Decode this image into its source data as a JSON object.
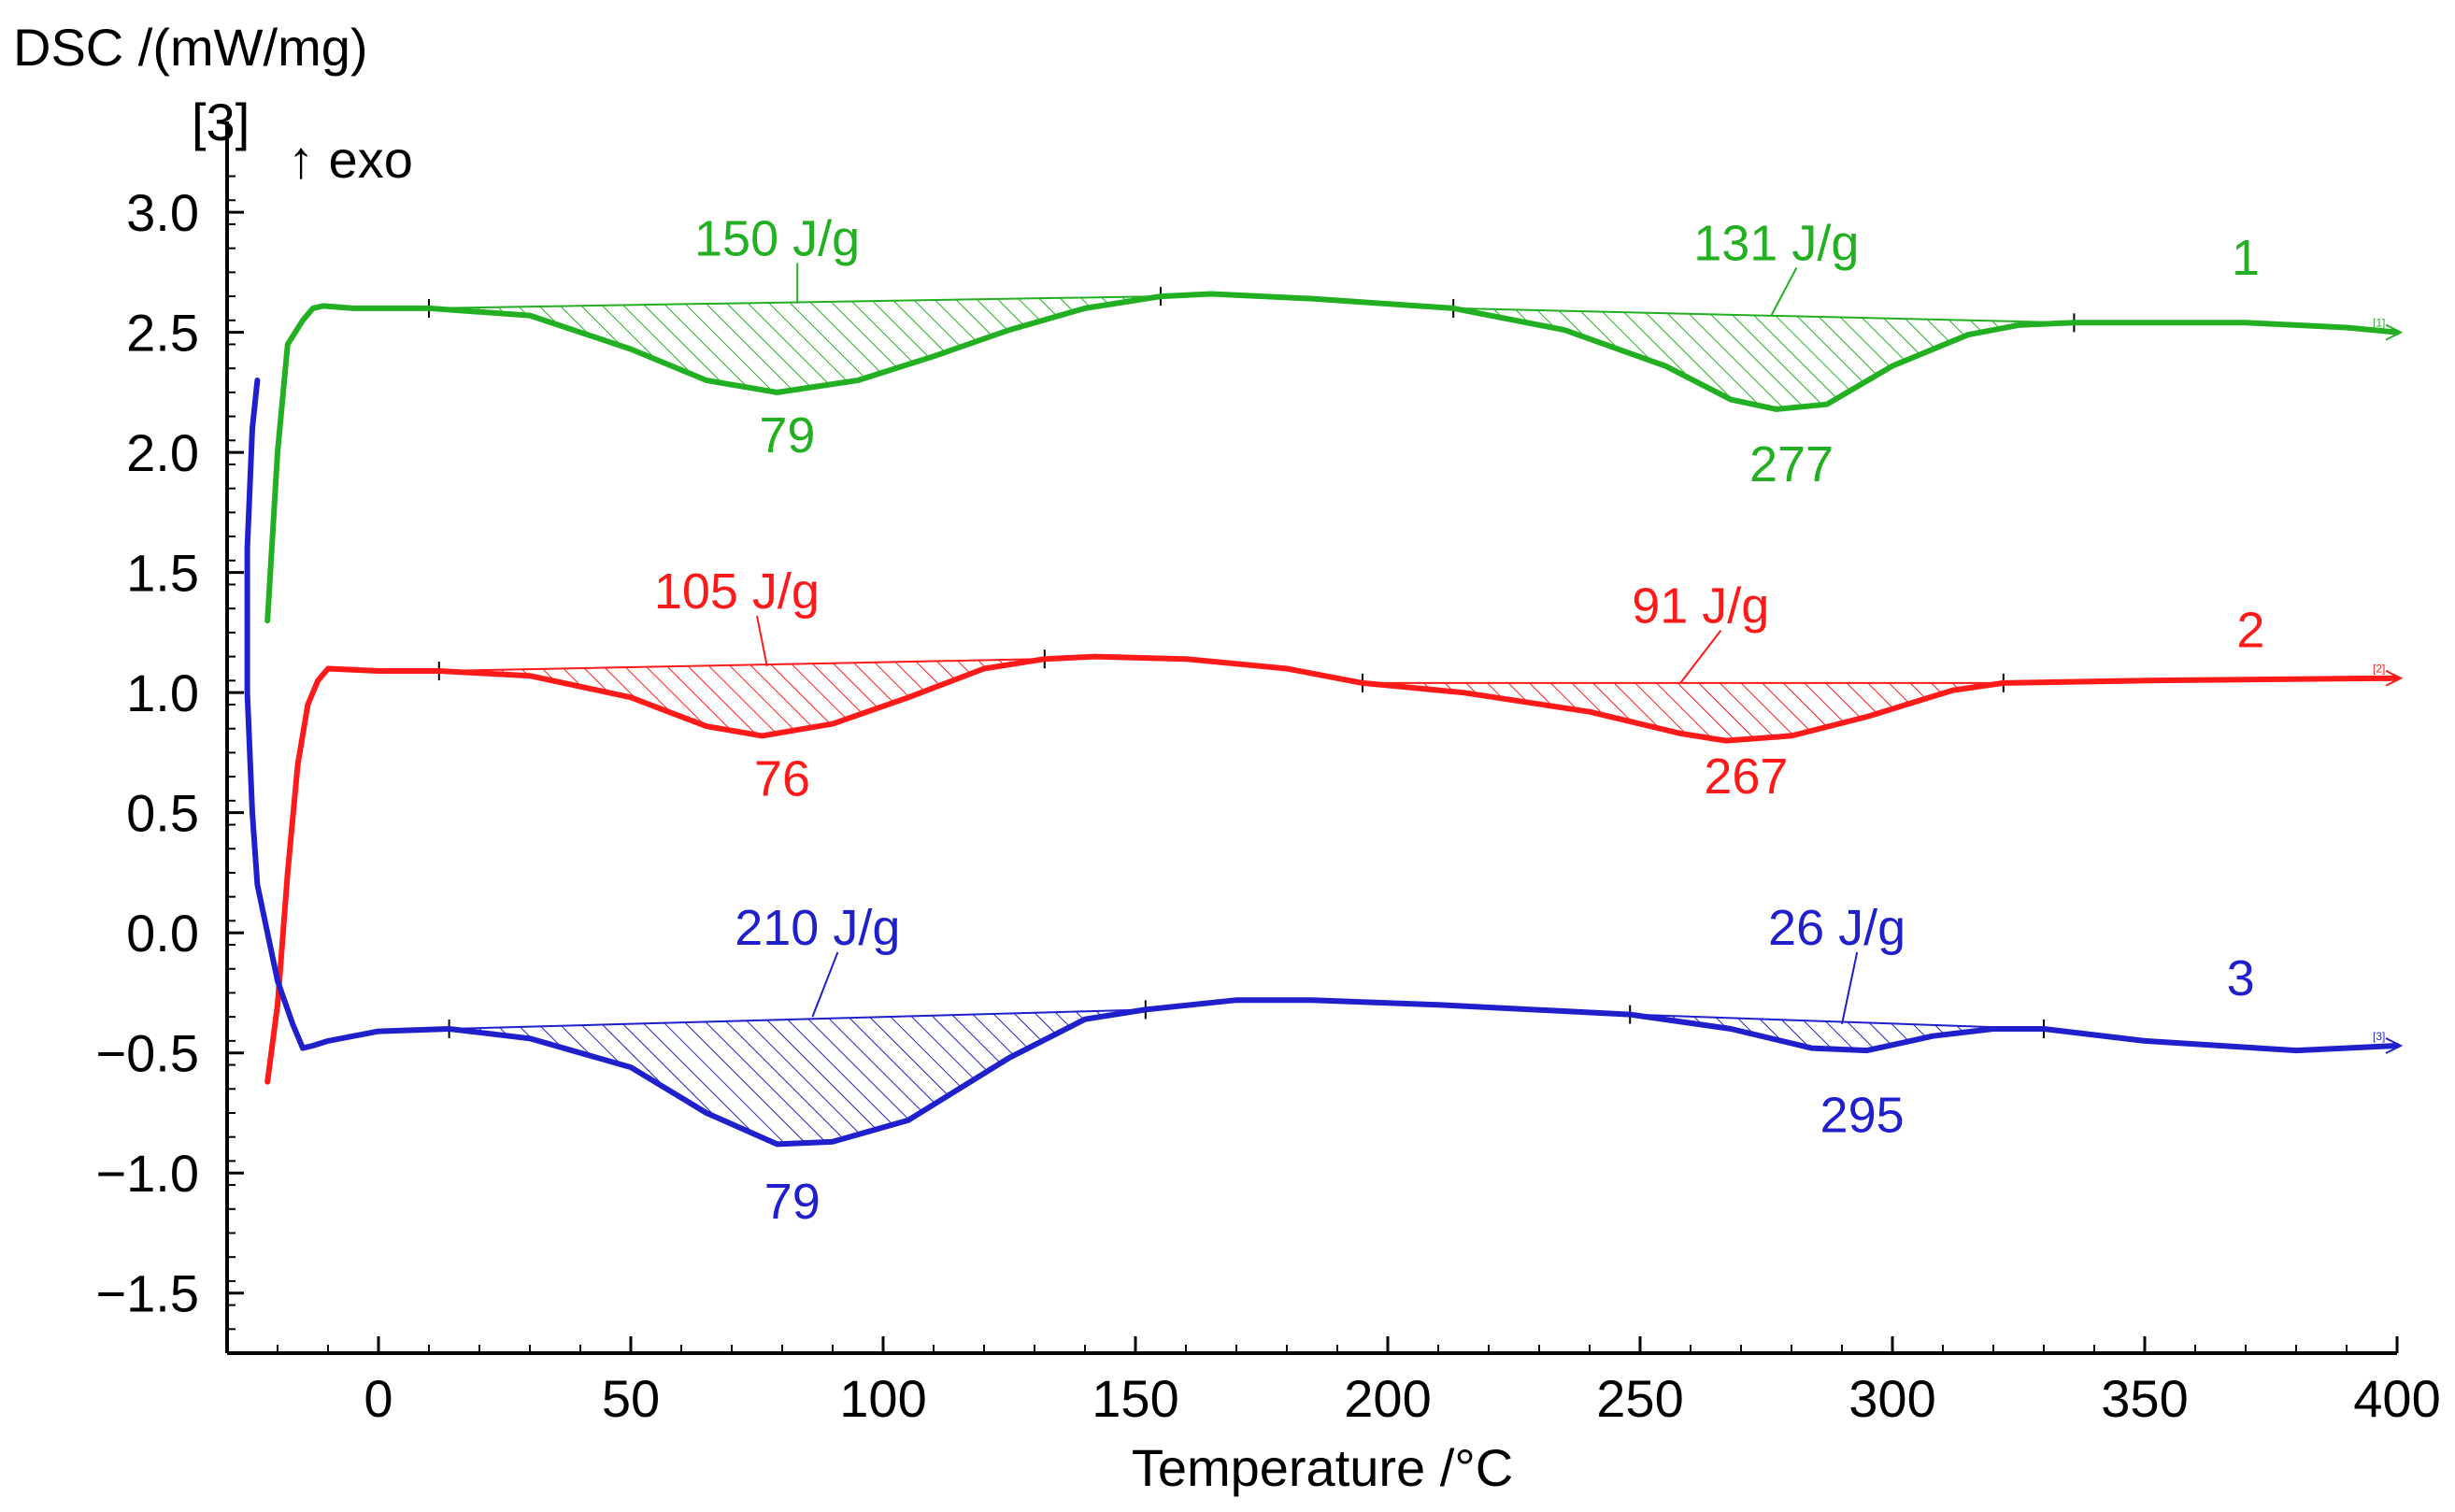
{
  "chart_data": {
    "type": "line",
    "y_axis_title": "DSC /(mW/mg)",
    "y_axis_tag": "[3]",
    "exo_marker": "↑ exo",
    "xlabel": "Temperature /°C",
    "xlim": [
      -30,
      400
    ],
    "ylim": [
      -1.75,
      3.3
    ],
    "x_ticks": [
      0,
      50,
      100,
      150,
      200,
      250,
      300,
      350,
      400
    ],
    "x_tick_labels": [
      "0",
      "50",
      "100",
      "150",
      "200",
      "250",
      "300",
      "350",
      "400"
    ],
    "y_ticks": [
      3.0,
      2.5,
      2.0,
      1.5,
      1.0,
      0.5,
      0.0,
      -0.5,
      -1.0,
      -1.5
    ],
    "y_tick_labels": [
      "3.0",
      "2.5",
      "2.0",
      "1.5",
      "1.0",
      "0.5",
      "0.0",
      "−0.5",
      "−1.0",
      "−1.5"
    ],
    "series": [
      {
        "name": "1",
        "color": "#22b022",
        "points": [
          [
            -22,
            1.3
          ],
          [
            -20,
            2.0
          ],
          [
            -18,
            2.45
          ],
          [
            -15,
            2.55
          ],
          [
            -13,
            2.6
          ],
          [
            -11,
            2.61
          ],
          [
            -5,
            2.6
          ],
          [
            10,
            2.6
          ],
          [
            30,
            2.57
          ],
          [
            50,
            2.43
          ],
          [
            65,
            2.3
          ],
          [
            79,
            2.25
          ],
          [
            95,
            2.3
          ],
          [
            110,
            2.4
          ],
          [
            125,
            2.51
          ],
          [
            140,
            2.6
          ],
          [
            155,
            2.65
          ],
          [
            165,
            2.66
          ],
          [
            185,
            2.64
          ],
          [
            213,
            2.6
          ],
          [
            235,
            2.51
          ],
          [
            255,
            2.36
          ],
          [
            268,
            2.22
          ],
          [
            277,
            2.18
          ],
          [
            287,
            2.2
          ],
          [
            300,
            2.36
          ],
          [
            315,
            2.49
          ],
          [
            325,
            2.53
          ],
          [
            336,
            2.54
          ],
          [
            370,
            2.54
          ],
          [
            390,
            2.52
          ],
          [
            400,
            2.5
          ]
        ],
        "baselines": [
          [
            [
              10,
              2.6
            ],
            [
              155,
              2.65
            ]
          ],
          [
            [
              213,
              2.6
            ],
            [
              336,
              2.54
            ]
          ]
        ],
        "peaks": [
          {
            "x": 79,
            "label": "79",
            "label_x": 81,
            "label_y": 2.0
          },
          {
            "x": 277,
            "label": "277",
            "label_x": 280,
            "label_y": 1.88
          }
        ],
        "areas": [
          {
            "label": "150 J/g",
            "text_x": 79,
            "text_y": 2.82,
            "leader_x": 83,
            "leader_y": 2.62
          },
          {
            "label": "131 J/g",
            "text_x": 277,
            "text_y": 2.8,
            "leader_x": 276,
            "leader_y": 2.57
          }
        ],
        "curve_label": {
          "text": "1",
          "x": 370,
          "y": 2.74
        },
        "end_tag": "[1]"
      },
      {
        "name": "2",
        "color": "#ff1a1a",
        "points": [
          [
            -22,
            -0.62
          ],
          [
            -20,
            -0.3
          ],
          [
            -18,
            0.25
          ],
          [
            -16,
            0.7
          ],
          [
            -14,
            0.95
          ],
          [
            -12,
            1.05
          ],
          [
            -10,
            1.1
          ],
          [
            0,
            1.09
          ],
          [
            12,
            1.09
          ],
          [
            30,
            1.07
          ],
          [
            50,
            0.98
          ],
          [
            65,
            0.86
          ],
          [
            76,
            0.82
          ],
          [
            90,
            0.87
          ],
          [
            105,
            0.98
          ],
          [
            120,
            1.1
          ],
          [
            132,
            1.14
          ],
          [
            142,
            1.15
          ],
          [
            160,
            1.14
          ],
          [
            180,
            1.1
          ],
          [
            195,
            1.04
          ],
          [
            215,
            1.0
          ],
          [
            240,
            0.92
          ],
          [
            258,
            0.83
          ],
          [
            267,
            0.8
          ],
          [
            280,
            0.82
          ],
          [
            295,
            0.9
          ],
          [
            312,
            1.01
          ],
          [
            322,
            1.04
          ],
          [
            350,
            1.05
          ],
          [
            400,
            1.06
          ]
        ],
        "baselines": [
          [
            [
              12,
              1.09
            ],
            [
              132,
              1.14
            ]
          ],
          [
            [
              195,
              1.04
            ],
            [
              322,
              1.04
            ]
          ]
        ],
        "peaks": [
          {
            "x": 76,
            "label": "76",
            "label_x": 80,
            "label_y": 0.57
          },
          {
            "x": 267,
            "label": "267",
            "label_x": 271,
            "label_y": 0.58
          }
        ],
        "areas": [
          {
            "label": "105 J/g",
            "text_x": 71,
            "text_y": 1.35,
            "leader_x": 77,
            "leader_y": 1.11
          },
          {
            "label": "91 J/g",
            "text_x": 262,
            "text_y": 1.29,
            "leader_x": 258,
            "leader_y": 1.04
          }
        ],
        "curve_label": {
          "text": "2",
          "x": 371,
          "y": 1.19
        },
        "end_tag": "[2]"
      },
      {
        "name": "3",
        "color": "#1f1fcc",
        "points": [
          [
            -24,
            2.3
          ],
          [
            -25,
            2.1
          ],
          [
            -26,
            1.6
          ],
          [
            -26,
            1.0
          ],
          [
            -25,
            0.5
          ],
          [
            -24,
            0.2
          ],
          [
            -22,
            0.0
          ],
          [
            -20,
            -0.2
          ],
          [
            -17,
            -0.38
          ],
          [
            -15,
            -0.48
          ],
          [
            -13,
            -0.47
          ],
          [
            -10,
            -0.45
          ],
          [
            0,
            -0.41
          ],
          [
            14,
            -0.4
          ],
          [
            30,
            -0.44
          ],
          [
            50,
            -0.56
          ],
          [
            65,
            -0.75
          ],
          [
            79,
            -0.88
          ],
          [
            90,
            -0.87
          ],
          [
            105,
            -0.78
          ],
          [
            125,
            -0.52
          ],
          [
            140,
            -0.36
          ],
          [
            152,
            -0.32
          ],
          [
            170,
            -0.28
          ],
          [
            185,
            -0.28
          ],
          [
            210,
            -0.3
          ],
          [
            248,
            -0.34
          ],
          [
            268,
            -0.4
          ],
          [
            284,
            -0.48
          ],
          [
            295,
            -0.49
          ],
          [
            308,
            -0.43
          ],
          [
            320,
            -0.4
          ],
          [
            330,
            -0.4
          ],
          [
            350,
            -0.45
          ],
          [
            380,
            -0.49
          ],
          [
            400,
            -0.47
          ]
        ],
        "baselines": [
          [
            [
              14,
              -0.4
            ],
            [
              152,
              -0.32
            ]
          ],
          [
            [
              248,
              -0.34
            ],
            [
              330,
              -0.4
            ]
          ]
        ],
        "peaks": [
          {
            "x": 79,
            "label": "79",
            "label_x": 82,
            "label_y": -1.19
          },
          {
            "x": 295,
            "label": "295",
            "label_x": 294,
            "label_y": -0.83
          }
        ],
        "areas": [
          {
            "label": "210 J/g",
            "text_x": 87,
            "text_y": -0.05,
            "leader_x": 86,
            "leader_y": -0.35
          },
          {
            "label": "26 J/g",
            "text_x": 289,
            "text_y": -0.05,
            "leader_x": 290,
            "leader_y": -0.38
          }
        ],
        "curve_label": {
          "text": "3",
          "x": 369,
          "y": -0.26
        },
        "end_tag": "[3]"
      }
    ]
  }
}
